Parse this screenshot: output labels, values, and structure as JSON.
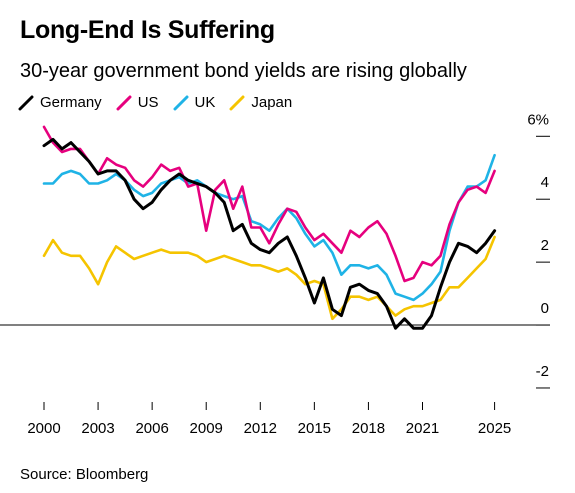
{
  "title": "Long-End Is Suffering",
  "subtitle": "30-year government bond yields are rising globally",
  "source": "Source: Bloomberg",
  "colors": {
    "Germany": "#000000",
    "US": "#e6007e",
    "UK": "#1fb3e6",
    "Japan": "#f5c400"
  },
  "chart_data": {
    "type": "line",
    "x_ticks": [
      "2000",
      "2003",
      "2006",
      "2009",
      "2012",
      "2015",
      "2018",
      "2021",
      "2025"
    ],
    "x_tick_values": [
      2000,
      2003,
      2006,
      2009,
      2012,
      2015,
      2018,
      2021,
      2025
    ],
    "y_ticks": [
      "6%",
      "4",
      "2",
      "0",
      "-2"
    ],
    "y_tick_values": [
      6,
      4,
      2,
      0,
      -2
    ],
    "xlim": [
      2000,
      2025.3
    ],
    "ylim": [
      -2.7,
      6.2
    ],
    "legend_position": "top-left",
    "series": [
      {
        "name": "Germany",
        "color": "#000000",
        "x": [
          2000.0,
          2000.5,
          2001.0,
          2001.5,
          2002.0,
          2002.5,
          2003.0,
          2003.5,
          2004.0,
          2004.5,
          2005.0,
          2005.5,
          2006.0,
          2006.5,
          2007.0,
          2007.5,
          2008.0,
          2008.5,
          2009.0,
          2009.5,
          2010.0,
          2010.5,
          2011.0,
          2011.5,
          2012.0,
          2012.5,
          2013.0,
          2013.5,
          2014.0,
          2014.5,
          2015.0,
          2015.5,
          2016.0,
          2016.5,
          2017.0,
          2017.5,
          2018.0,
          2018.5,
          2019.0,
          2019.5,
          2020.0,
          2020.5,
          2021.0,
          2021.5,
          2022.0,
          2022.5,
          2023.0,
          2023.5,
          2024.0,
          2024.5,
          2025.0
        ],
        "y": [
          5.7,
          5.9,
          5.6,
          5.8,
          5.5,
          5.2,
          4.8,
          4.9,
          4.9,
          4.6,
          4.0,
          3.7,
          3.9,
          4.3,
          4.6,
          4.8,
          4.6,
          4.5,
          4.4,
          4.2,
          3.9,
          3.0,
          3.2,
          2.6,
          2.4,
          2.3,
          2.6,
          2.8,
          2.2,
          1.5,
          0.7,
          1.5,
          0.5,
          0.3,
          1.2,
          1.3,
          1.1,
          1.0,
          0.6,
          -0.1,
          0.2,
          -0.1,
          -0.1,
          0.3,
          1.2,
          2.0,
          2.6,
          2.5,
          2.3,
          2.6,
          3.0
        ]
      },
      {
        "name": "US",
        "color": "#e6007e",
        "x": [
          2000.0,
          2000.5,
          2001.0,
          2001.5,
          2002.0,
          2002.5,
          2003.0,
          2003.5,
          2004.0,
          2004.5,
          2005.0,
          2005.5,
          2006.0,
          2006.5,
          2007.0,
          2007.5,
          2008.0,
          2008.5,
          2009.0,
          2009.5,
          2010.0,
          2010.5,
          2011.0,
          2011.5,
          2012.0,
          2012.5,
          2013.0,
          2013.5,
          2014.0,
          2014.5,
          2015.0,
          2015.5,
          2016.0,
          2016.5,
          2017.0,
          2017.5,
          2018.0,
          2018.5,
          2019.0,
          2019.5,
          2020.0,
          2020.5,
          2021.0,
          2021.5,
          2022.0,
          2022.5,
          2023.0,
          2023.5,
          2024.0,
          2024.5,
          2025.0
        ],
        "y": [
          6.3,
          5.8,
          5.5,
          5.6,
          5.6,
          5.2,
          4.8,
          5.3,
          5.1,
          5.0,
          4.6,
          4.4,
          4.7,
          5.1,
          4.9,
          5.0,
          4.4,
          4.5,
          3.0,
          4.3,
          4.6,
          3.7,
          4.4,
          3.1,
          3.1,
          2.6,
          3.2,
          3.7,
          3.6,
          3.1,
          2.7,
          2.9,
          2.6,
          2.3,
          3.0,
          2.8,
          3.1,
          3.3,
          2.9,
          2.2,
          1.4,
          1.5,
          2.0,
          1.9,
          2.2,
          3.2,
          3.9,
          4.3,
          4.4,
          4.2,
          4.9
        ]
      },
      {
        "name": "UK",
        "color": "#1fb3e6",
        "x": [
          2000.0,
          2000.5,
          2001.0,
          2001.5,
          2002.0,
          2002.5,
          2003.0,
          2003.5,
          2004.0,
          2004.5,
          2005.0,
          2005.5,
          2006.0,
          2006.5,
          2007.0,
          2007.5,
          2008.0,
          2008.5,
          2009.0,
          2009.5,
          2010.0,
          2010.5,
          2011.0,
          2011.5,
          2012.0,
          2012.5,
          2013.0,
          2013.5,
          2014.0,
          2014.5,
          2015.0,
          2015.5,
          2016.0,
          2016.5,
          2017.0,
          2017.5,
          2018.0,
          2018.5,
          2019.0,
          2019.5,
          2020.0,
          2020.5,
          2021.0,
          2021.5,
          2022.0,
          2022.5,
          2023.0,
          2023.5,
          2024.0,
          2024.5,
          2025.0
        ],
        "y": [
          4.5,
          4.5,
          4.8,
          4.9,
          4.8,
          4.5,
          4.5,
          4.6,
          4.8,
          4.6,
          4.3,
          4.1,
          4.2,
          4.5,
          4.6,
          4.7,
          4.5,
          4.6,
          4.4,
          4.2,
          4.1,
          4.0,
          4.1,
          3.3,
          3.2,
          3.0,
          3.4,
          3.7,
          3.4,
          2.9,
          2.5,
          2.7,
          2.3,
          1.6,
          1.9,
          1.9,
          1.8,
          1.9,
          1.6,
          1.0,
          0.9,
          0.8,
          1.0,
          1.3,
          1.7,
          3.0,
          3.9,
          4.4,
          4.4,
          4.6,
          5.4
        ]
      },
      {
        "name": "Japan",
        "color": "#f5c400",
        "x": [
          2000.0,
          2000.5,
          2001.0,
          2001.5,
          2002.0,
          2002.5,
          2003.0,
          2003.5,
          2004.0,
          2004.5,
          2005.0,
          2005.5,
          2006.0,
          2006.5,
          2007.0,
          2007.5,
          2008.0,
          2008.5,
          2009.0,
          2009.5,
          2010.0,
          2010.5,
          2011.0,
          2011.5,
          2012.0,
          2012.5,
          2013.0,
          2013.5,
          2014.0,
          2014.5,
          2015.0,
          2015.5,
          2016.0,
          2016.5,
          2017.0,
          2017.5,
          2018.0,
          2018.5,
          2019.0,
          2019.5,
          2020.0,
          2020.5,
          2021.0,
          2021.5,
          2022.0,
          2022.5,
          2023.0,
          2023.5,
          2024.0,
          2024.5,
          2025.0
        ],
        "y": [
          2.2,
          2.7,
          2.3,
          2.2,
          2.2,
          1.8,
          1.3,
          2.0,
          2.5,
          2.3,
          2.1,
          2.2,
          2.3,
          2.4,
          2.3,
          2.3,
          2.3,
          2.2,
          2.0,
          2.1,
          2.2,
          2.1,
          2.0,
          1.9,
          1.9,
          1.8,
          1.7,
          1.8,
          1.6,
          1.3,
          1.4,
          1.3,
          0.2,
          0.5,
          0.9,
          0.9,
          0.8,
          0.9,
          0.6,
          0.3,
          0.5,
          0.6,
          0.6,
          0.7,
          0.8,
          1.2,
          1.2,
          1.5,
          1.8,
          2.1,
          2.8
        ]
      }
    ]
  }
}
